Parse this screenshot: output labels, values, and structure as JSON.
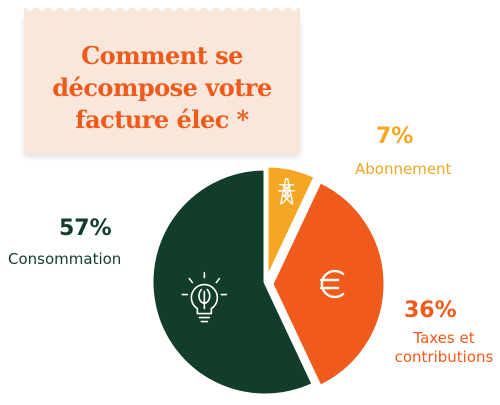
{
  "chart_data": {
    "type": "pie",
    "title": "Comment se décompose votre facture élec *",
    "slices": [
      {
        "pct_label": "7%",
        "label": "Abonnement",
        "value": 7,
        "color": "#f5a623",
        "icon": "electric-pylon-icon"
      },
      {
        "pct_label": "36%",
        "label_lines": [
          "Taxes et",
          "contributions"
        ],
        "value": 36,
        "color": "#f05a1a",
        "icon": "euro-icon"
      },
      {
        "pct_label": "57%",
        "label": "Consommation",
        "value": 57,
        "color": "#133d2b",
        "icon": "lightbulb-icon"
      }
    ]
  },
  "colors": {
    "title": "#ee5a1b",
    "consommation_text": "#133d2b",
    "orange_text": "#f05a1a",
    "yellow_text": "#f5a623"
  }
}
